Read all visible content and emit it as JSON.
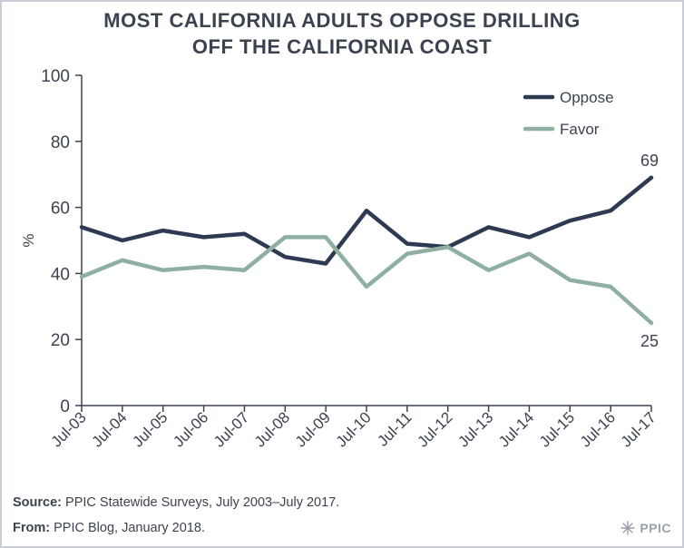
{
  "chart_data": {
    "type": "line",
    "title_lines": [
      "MOST CALIFORNIA ADULTS OPPOSE DRILLING",
      "OFF THE CALIFORNIA COAST"
    ],
    "categories": [
      "Jul-03",
      "Jul-04",
      "Jul-05",
      "Jul-06",
      "Jul-07",
      "Jul-08",
      "Jul-09",
      "Jul-10",
      "Jul-11",
      "Jul-12",
      "Jul-13",
      "Jul-14",
      "Jul-15",
      "Jul-16",
      "Jul-17"
    ],
    "series": [
      {
        "name": "Oppose",
        "color": "#2d3a52",
        "values": [
          54,
          50,
          53,
          51,
          52,
          45,
          43,
          59,
          49,
          48,
          54,
          51,
          56,
          59,
          69
        ]
      },
      {
        "name": "Favor",
        "color": "#8fb0a1",
        "values": [
          39,
          44,
          41,
          42,
          41,
          51,
          51,
          36,
          46,
          48,
          41,
          46,
          38,
          36,
          25
        ]
      }
    ],
    "ylabel": "%",
    "ylim": [
      0,
      100
    ],
    "yticks": [
      0,
      20,
      40,
      60,
      80,
      100
    ],
    "end_labels": [
      "69",
      "25"
    ],
    "legend": "top-right"
  },
  "footer": {
    "source_label": "Source:",
    "source_text": " PPIC Statewide Surveys, July 2003–July 2017.",
    "from_label": "From:",
    "from_text": " PPIC Blog, January 2018."
  },
  "logo": {
    "text": "PPIC"
  }
}
